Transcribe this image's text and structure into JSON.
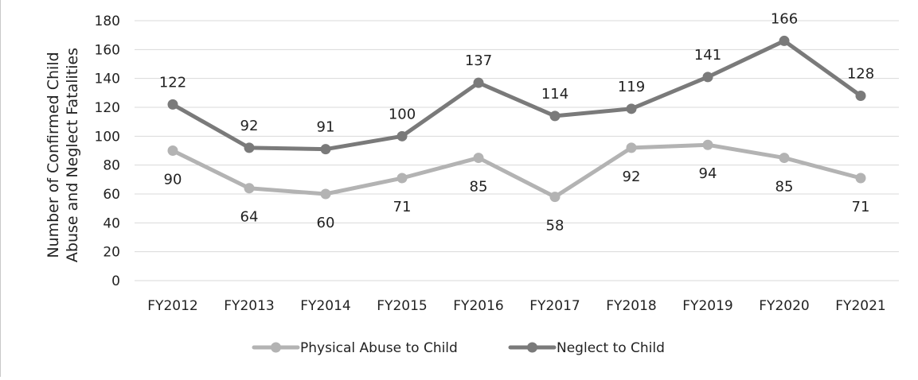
{
  "chart_data": {
    "type": "line",
    "categories": [
      "FY2012",
      "FY2013",
      "FY2014",
      "FY2015",
      "FY2016",
      "FY2017",
      "FY2018",
      "FY2019",
      "FY2020",
      "FY2021"
    ],
    "series": [
      {
        "name": "Physical Abuse to Child",
        "values": [
          90,
          64,
          60,
          71,
          85,
          58,
          92,
          94,
          85,
          71
        ],
        "color": "#b3b3b3",
        "label_position": "below"
      },
      {
        "name": "Neglect to Child",
        "values": [
          122,
          92,
          91,
          100,
          137,
          114,
          119,
          141,
          166,
          128
        ],
        "color": "#7a7a7a",
        "label_position": "above"
      }
    ],
    "ylabel": [
      "Number of Confirmed Child",
      "Abuse and Neglect  Fatalities"
    ],
    "xlabel": "",
    "ylim": [
      0,
      180
    ],
    "yticks": [
      0,
      20,
      40,
      60,
      80,
      100,
      120,
      140,
      160,
      180
    ],
    "grid": true,
    "legend_position": "bottom",
    "data_labels": true
  }
}
